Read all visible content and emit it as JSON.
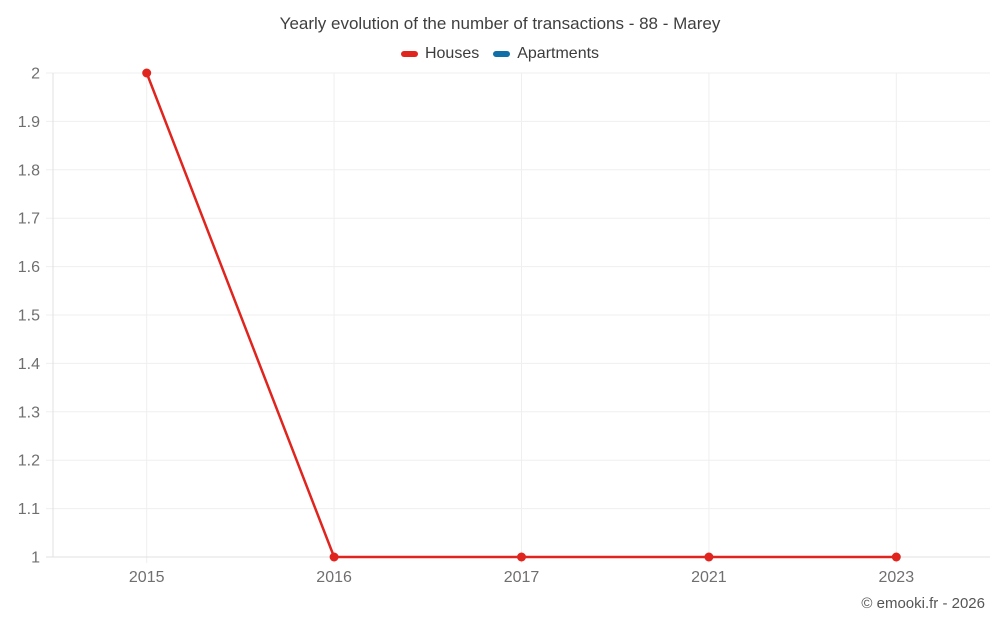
{
  "title": "Yearly evolution of the number of transactions - 88 - Marey",
  "footer": {
    "copyright": "© emooki.fr - 2026"
  },
  "colors": {
    "houses": "#e0241e",
    "apartments": "#0f6fa6",
    "gridline": "#efefef",
    "axis_line": "#e0e0e0",
    "tick_label": "#6f6f6f"
  },
  "chart_data": {
    "type": "line",
    "title": "Yearly evolution of the number of transactions - 88 - Marey",
    "categories": [
      "2015",
      "2016",
      "2017",
      "2021",
      "2023"
    ],
    "series": [
      {
        "name": "Houses",
        "color": "#e0241e",
        "values": [
          2,
          1,
          1,
          1,
          1
        ]
      },
      {
        "name": "Apartments",
        "color": "#0f6fa6",
        "values": []
      }
    ],
    "xlabel": "",
    "ylabel": "",
    "ylim": [
      1,
      2
    ],
    "ytick_step": 0.1,
    "ytick_labels": [
      "1",
      "1.1",
      "1.2",
      "1.3",
      "1.4",
      "1.5",
      "1.6",
      "1.7",
      "1.8",
      "1.9",
      "2"
    ],
    "grid": true,
    "legend_position": "top"
  }
}
